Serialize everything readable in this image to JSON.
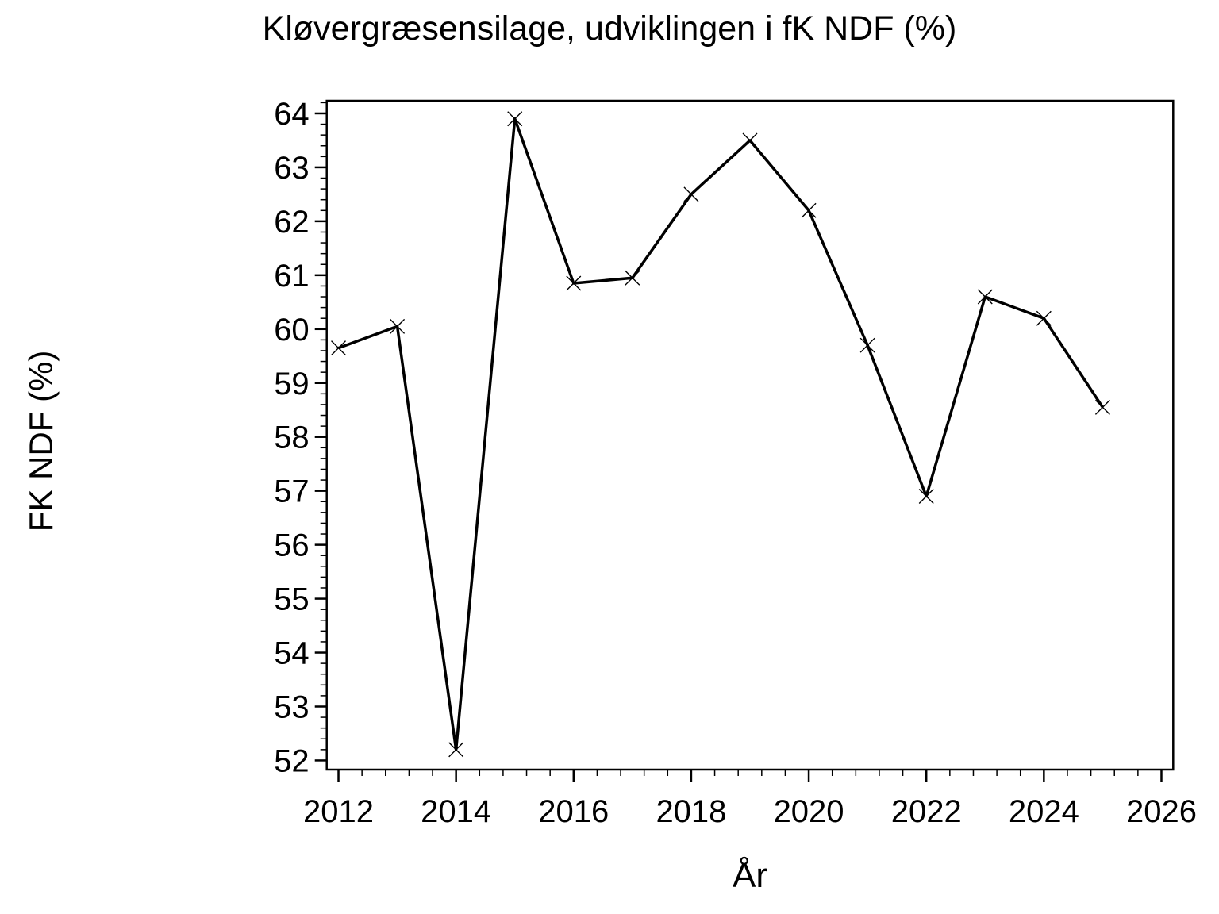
{
  "chart_data": {
    "type": "line",
    "title": "Kløvergræsensilage, udviklingen i fK NDF (%)",
    "xlabel": "År",
    "ylabel": "FK NDF (%)",
    "x": [
      2012,
      2013,
      2014,
      2015,
      2016,
      2017,
      2018,
      2019,
      2020,
      2021,
      2022,
      2023,
      2024,
      2025
    ],
    "values": [
      59.65,
      60.05,
      52.2,
      63.9,
      60.85,
      60.95,
      62.5,
      63.5,
      62.2,
      59.7,
      56.9,
      60.6,
      60.2,
      58.55
    ],
    "x_ticks": [
      2012,
      2014,
      2016,
      2018,
      2020,
      2022,
      2024,
      2026
    ],
    "y_ticks": [
      52,
      53,
      54,
      55,
      56,
      57,
      58,
      59,
      60,
      61,
      62,
      63,
      64
    ],
    "xlim": [
      2011.8,
      2026.2
    ],
    "ylim": [
      51.83,
      64.235
    ],
    "x_minor_step": 0.4,
    "y_minor_step": 0.2,
    "grid": false,
    "legend": false,
    "marker": "x",
    "line_color": "#000000",
    "background_color": "#ffffff"
  }
}
